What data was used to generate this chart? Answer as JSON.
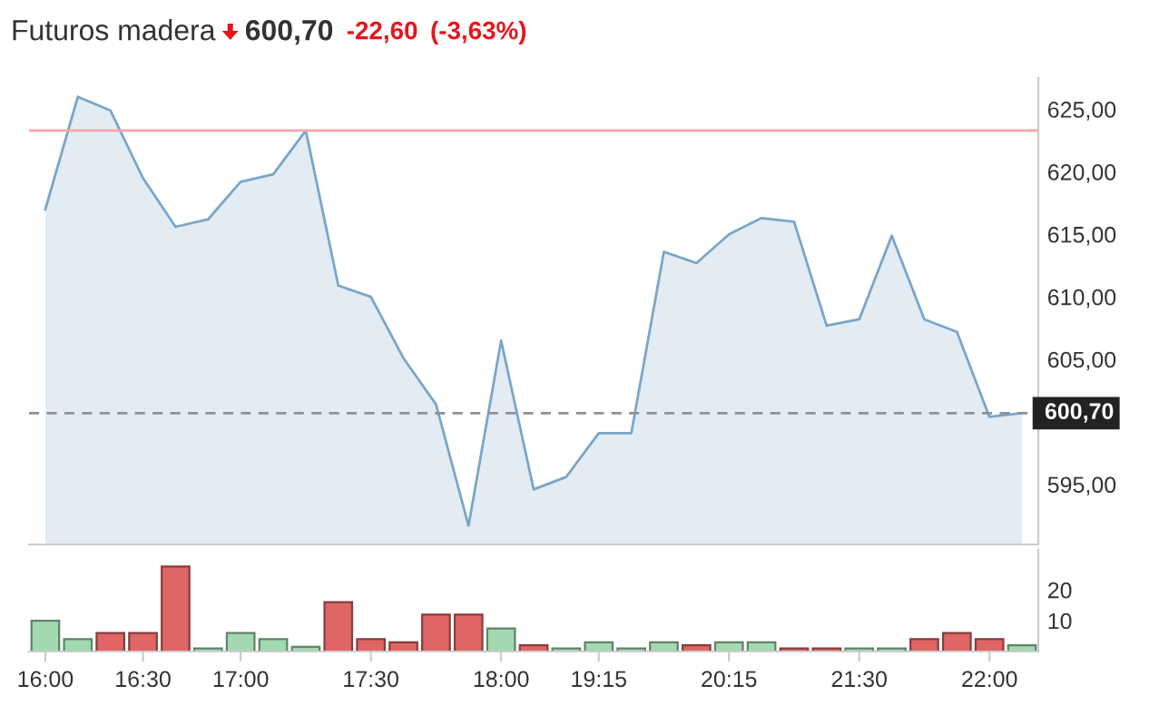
{
  "chart_data": [
    {
      "type": "area",
      "title": "Futuros madera",
      "annotations": [
        "600,70",
        "-22,60",
        "(-3,63%)"
      ],
      "categories": [
        null,
        null,
        null,
        null,
        null,
        null,
        null,
        null,
        null,
        null,
        null,
        null,
        null,
        null,
        null,
        null,
        null,
        null,
        null,
        null,
        null,
        null,
        null,
        null,
        null,
        null,
        null,
        null,
        null,
        null,
        null
      ],
      "series": [
        {
          "color": "#7aa6c8",
          "values": [
            617.0,
            626.0,
            624.9,
            619.5,
            615.6,
            616.2,
            619.2,
            619.8,
            623.3,
            610.9,
            610.0,
            605.1,
            601.4,
            591.7,
            606.5,
            594.6,
            595.6,
            599.1,
            599.1,
            613.6,
            612.7,
            615.0,
            616.3,
            616.0,
            607.7,
            608.2,
            614.9,
            608.2,
            607.2,
            600.4,
            600.7
          ]
        }
      ],
      "ylim": [
        590.2,
        627.5
      ],
      "yticks": [
        {
          "value": 595,
          "label": "595,00"
        },
        {
          "value": 605,
          "label": "605,00"
        },
        {
          "value": 610,
          "label": "610,00"
        },
        {
          "value": 615,
          "label": "615,00"
        },
        {
          "value": 620,
          "label": "620,00"
        },
        {
          "value": 625,
          "label": "625,00"
        }
      ],
      "ref_lines": [
        {
          "axis": "y",
          "value": 623.3,
          "color": "#f4a6a6",
          "line_style": "solid"
        },
        {
          "axis": "y",
          "value": 600.7,
          "label": "600,70",
          "color": "#8a929a",
          "line_style": "dashed"
        }
      ],
      "tick_labels": "y",
      "grid": false,
      "legend": false
    },
    {
      "type": "bar",
      "categories": [
        "16:00",
        null,
        null,
        "16:30",
        null,
        null,
        "17:00",
        null,
        null,
        null,
        "17:30",
        null,
        null,
        null,
        "18:00",
        null,
        null,
        "19:15",
        null,
        null,
        null,
        "20:15",
        null,
        null,
        null,
        "21:30",
        null,
        null,
        null,
        "22:00",
        null
      ],
      "values": [
        10,
        4,
        6,
        6,
        27.6,
        1,
        6,
        4,
        1.5,
        16,
        4,
        3,
        12,
        12,
        7.5,
        2,
        1,
        3,
        1,
        3,
        2,
        3,
        3,
        1,
        1,
        1,
        1,
        4,
        6,
        4,
        2
      ],
      "colors": [
        "#a3d9b1",
        "#a3d9b1",
        "#e06666",
        "#e06666",
        "#e06666",
        "#a3d9b1",
        "#a3d9b1",
        "#a3d9b1",
        "#a3d9b1",
        "#e06666",
        "#e06666",
        "#e06666",
        "#e06666",
        "#e06666",
        "#a3d9b1",
        "#e06666",
        "#a3d9b1",
        "#a3d9b1",
        "#a3d9b1",
        "#a3d9b1",
        "#e06666",
        "#a3d9b1",
        "#a3d9b1",
        "#e06666",
        "#e06666",
        "#a3d9b1",
        "#a3d9b1",
        "#e06666",
        "#e06666",
        "#e06666",
        "#a3d9b1"
      ],
      "ylim": [
        0,
        33
      ],
      "yticks": [
        10,
        20
      ],
      "grid": false,
      "legend": false
    }
  ]
}
